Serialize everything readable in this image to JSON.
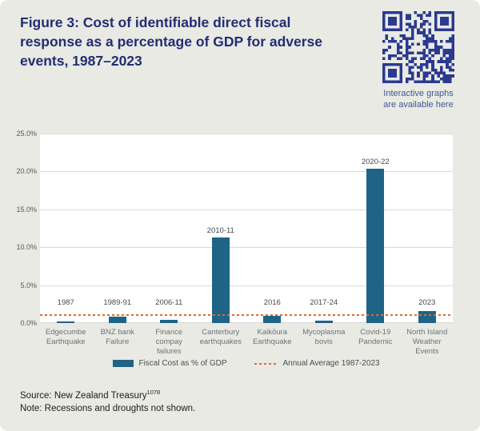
{
  "page": {
    "title": "Figure 3: Cost of identifiable direct fiscal response as a percentage of GDP for adverse events, 1987–2023",
    "qr_caption_line1": "Interactive graphs",
    "qr_caption_line2": "are available here"
  },
  "footer": {
    "source_prefix": "Source: New Zealand Treasury",
    "source_footnote": "1078",
    "note": "Note: Recessions and droughts not shown."
  },
  "colors": {
    "background": "#e8eae3",
    "title_text": "#232d74",
    "bar": "#1f6387",
    "average_line": "#e06c2e",
    "qr": "#2b3990",
    "plot_background": "#ffffff",
    "gridline": "#d9d9d9"
  },
  "chart_data": {
    "type": "bar",
    "title": "Cost of identifiable direct fiscal response as a percentage of GDP for adverse events, 1987–2023",
    "categories": [
      "Edgecumbe Earthquake",
      "BNZ bank Failure",
      "Finance compay failures",
      "Canterbury earthquakes",
      "Kaikōura Earthquake",
      "Mycoplasma bovis",
      "Covid-19 Pandemic",
      "North Island Weather Events"
    ],
    "bar_labels": [
      "1987",
      "1989-91",
      "2006-11",
      "2010-11",
      "2016",
      "2017-24",
      "2020-22",
      "2023"
    ],
    "values": [
      0.2,
      0.8,
      0.4,
      11.3,
      0.9,
      0.3,
      20.4,
      1.6
    ],
    "average_line_value": 1.1,
    "xlabel": "",
    "ylabel": "",
    "ylim": [
      0,
      25
    ],
    "ytick_step": 5,
    "ytick_labels": [
      "0.0%",
      "5.0%",
      "10.0%",
      "15.0%",
      "20.0%",
      "25.0%"
    ],
    "grid": true,
    "legend_position": "bottom",
    "legend": [
      "Fiscal Cost as % of GDP",
      "Annual Average 1987-2023"
    ]
  }
}
